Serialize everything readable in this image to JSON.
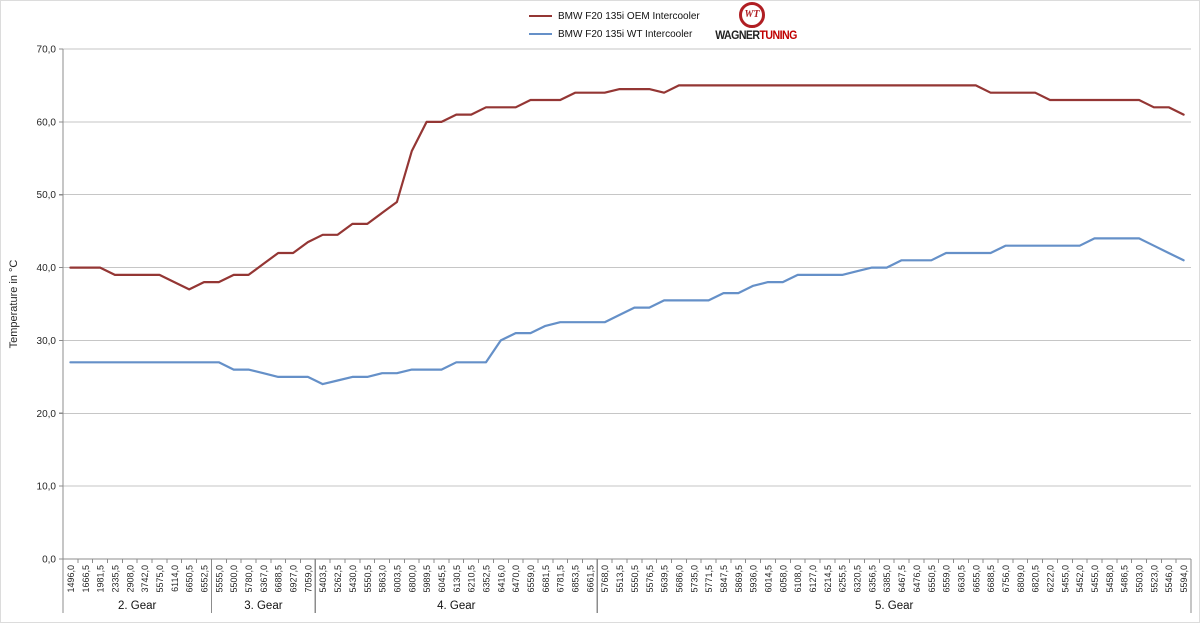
{
  "logo": {
    "monogram": "WT",
    "brand_black": "WAGNER",
    "brand_red": "TUNING"
  },
  "colors": {
    "oem_line": "#943634",
    "wt_line": "#6590c8",
    "gridline": "#c6c6c6",
    "axis": "#8c8c8c",
    "tick_text": "#262626",
    "logo_ring": "#b01e23",
    "logo_red": "#c00000"
  },
  "chart_data": {
    "type": "line",
    "title": "",
    "ylabel": "Temperature in °C",
    "xlabel": "",
    "ylim": [
      0,
      70
    ],
    "y_step": 10,
    "grid": true,
    "legend_position": "top-center",
    "y_tick_labels": [
      "0,0",
      "10,0",
      "20,0",
      "30,0",
      "40,0",
      "50,0",
      "60,0",
      "70,0"
    ],
    "gear_groups": [
      {
        "label": "2. Gear",
        "tick_labels": [
          "1496,0",
          "1666,5",
          "1981,5",
          "2335,5",
          "2908,0",
          "3742,0",
          "5575,0",
          "6114,0",
          "6650,5",
          "6552,5"
        ]
      },
      {
        "label": "3. Gear",
        "tick_labels": [
          "5555,0",
          "5500,0",
          "5780,0",
          "6367,0",
          "6688,5",
          "6927,0",
          "7059,0"
        ]
      },
      {
        "label": "4. Gear",
        "tick_labels": [
          "5403,5",
          "5262,5",
          "5430,0",
          "5550,5",
          "5863,0",
          "6003,5",
          "6800,0",
          "5989,5",
          "6045,5",
          "6130,5",
          "6210,5",
          "6352,5",
          "6416,0",
          "6470,0",
          "6559,0",
          "6681,5",
          "6781,5",
          "6853,5",
          "6661,5"
        ]
      },
      {
        "label": "5. Gear",
        "tick_labels": [
          "5768,0",
          "5513,5",
          "5550,5",
          "5576,5",
          "5639,5",
          "5686,0",
          "5735,0",
          "5771,5",
          "5847,5",
          "5869,5",
          "5936,0",
          "6014,5",
          "6058,0",
          "6108,0",
          "6127,0",
          "6214,5",
          "6255,5",
          "6320,5",
          "6356,5",
          "6385,0",
          "6467,5",
          "6476,0",
          "6550,5",
          "6559,0",
          "6630,5",
          "6655,0",
          "6688,5",
          "6756,0",
          "6809,0",
          "6820,5",
          "6222,0",
          "5455,0",
          "5452,0",
          "5455,0",
          "5458,0",
          "5486,5",
          "5503,0",
          "5523,0",
          "5546,0",
          "5594,0"
        ]
      }
    ],
    "series": [
      {
        "name": "BMW F20 135i OEM Intercooler",
        "color": "#943634",
        "values": [
          40,
          40,
          40,
          39,
          39,
          39,
          39,
          38,
          37,
          38,
          38,
          39,
          39,
          40.5,
          42,
          42,
          43.5,
          44.5,
          44.5,
          46,
          46,
          47.5,
          49,
          56,
          60,
          60,
          61,
          61,
          62,
          62,
          62,
          63,
          63,
          63,
          64,
          64,
          64,
          64.5,
          64.5,
          64.5,
          64,
          65,
          65,
          65,
          65,
          65,
          65,
          65,
          65,
          65,
          65,
          65,
          65,
          65,
          65,
          65,
          65,
          65,
          65,
          65,
          65,
          65,
          64,
          64,
          64,
          64,
          63,
          63,
          63,
          63,
          63,
          63,
          63,
          62,
          62,
          61
        ]
      },
      {
        "name": "BMW F20 135i WT Intercooler",
        "color": "#6590c8",
        "values": [
          27,
          27,
          27,
          27,
          27,
          27,
          27,
          27,
          27,
          27,
          27,
          26,
          26,
          25.5,
          25,
          25,
          25,
          24,
          24.5,
          25,
          25,
          25.5,
          25.5,
          26,
          26,
          26,
          27,
          27,
          27,
          30,
          31,
          31,
          32,
          32.5,
          32.5,
          32.5,
          32.5,
          33.5,
          34.5,
          34.5,
          35.5,
          35.5,
          35.5,
          35.5,
          36.5,
          36.5,
          37.5,
          38,
          38,
          39,
          39,
          39,
          39,
          39.5,
          40,
          40,
          41,
          41,
          41,
          42,
          42,
          42,
          42,
          43,
          43,
          43,
          43,
          43,
          43,
          44,
          44,
          44,
          44,
          43,
          42,
          41
        ]
      }
    ]
  }
}
